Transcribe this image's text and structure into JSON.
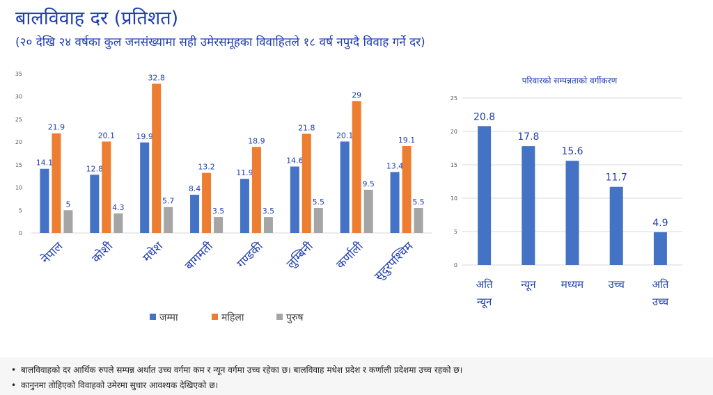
{
  "title": "बालविवाह दर (प्रतिशत)",
  "subtitle": "(२० देखि २४ वर्षका कुल जनसंख्यामा सही उमेरसमूहका विवाहितले १८ वर्ष नपुग्दै विवाह गर्ने दर)",
  "colors": {
    "total": "#4472c4",
    "female": "#ed7d31",
    "male": "#a5a5a5",
    "title": "#1f3fb0"
  },
  "chart_data": [
    {
      "type": "bar",
      "title": "",
      "categories": [
        "नेपाल",
        "कोशी",
        "मधेश",
        "बागमती",
        "गण्डकी",
        "लुम्बिनी",
        "कर्णाली",
        "सुदुरपश्चिम"
      ],
      "series": [
        {
          "name": "जम्मा",
          "values": [
            14.1,
            12.8,
            19.9,
            8.4,
            11.9,
            14.6,
            20.1,
            13.4
          ]
        },
        {
          "name": "महिला",
          "values": [
            21.9,
            20.1,
            32.8,
            13.2,
            18.9,
            21.8,
            29,
            19.1
          ]
        },
        {
          "name": "पुरुष",
          "values": [
            5.0,
            4.3,
            5.7,
            3.5,
            3.5,
            5.5,
            9.5,
            5.5
          ]
        }
      ],
      "ylim": [
        0,
        35
      ],
      "yticks": [
        0,
        5,
        10,
        15,
        20,
        25,
        30,
        35
      ],
      "grid": false,
      "legend": "bottom"
    },
    {
      "type": "bar",
      "title": "परिवारको सम्पन्नताको वर्गीकरण",
      "categories": [
        "अति न्यून",
        "न्यून",
        "मध्यम",
        "उच्च",
        "अति उच्च"
      ],
      "values": [
        20.8,
        17.8,
        15.6,
        11.7,
        4.9
      ],
      "ylim": [
        0,
        25
      ],
      "yticks": [
        0,
        5,
        10,
        15,
        20,
        25
      ],
      "grid": true
    }
  ],
  "notes": [
    "बालविवाहको दर आर्थिक रुपले सम्पन्न अर्थात उच्च वर्गमा कम र न्यून वर्गमा उच्च रहेका छ। बालविवाह मधेश प्रदेश र कर्णाली प्रदेशमा उच्च रहको छ।",
    "कानुनमा तोहिएको विवाहको उमेरमा सुधार आवश्यक देखिएको छ।"
  ]
}
